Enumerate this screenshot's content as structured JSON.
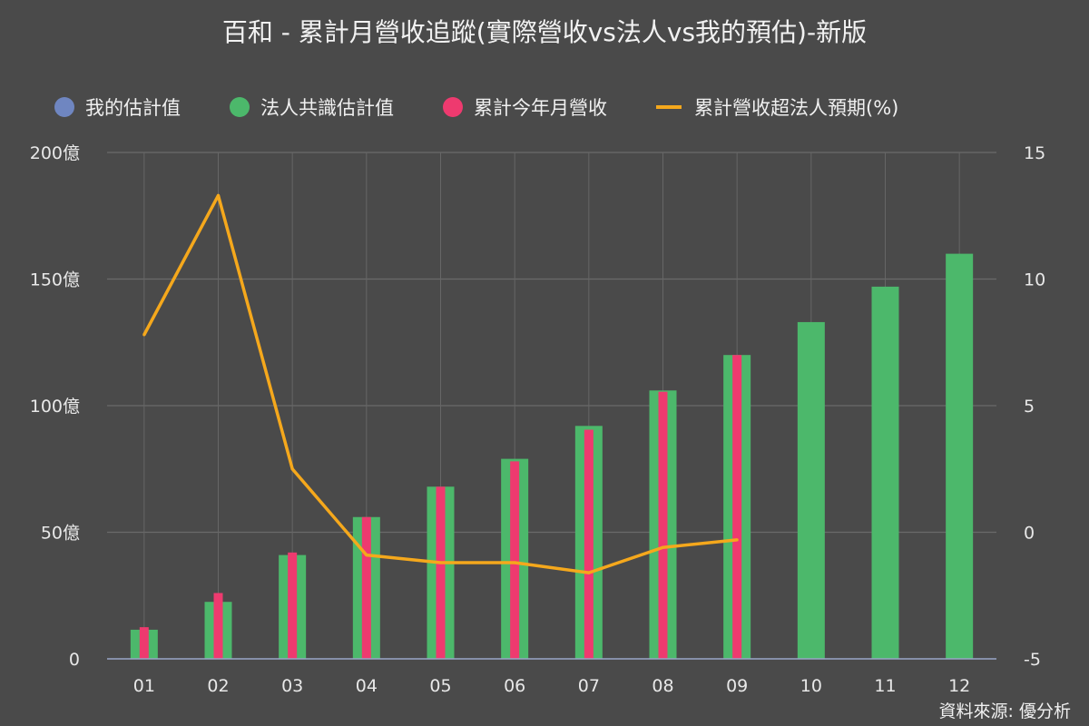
{
  "title": "百和 - 累計月營收追蹤(實際營收vs法人vs我的預估)-新版",
  "source": "資料來源: 優分析",
  "legend": [
    {
      "label": "我的估計值",
      "color": "#6f86c1",
      "kind": "dot",
      "icon": "circle-icon"
    },
    {
      "label": "法人共識估計值",
      "color": "#4cb86b",
      "kind": "dot",
      "icon": "circle-icon"
    },
    {
      "label": "累計今年月營收",
      "color": "#ee3a6f",
      "kind": "dot",
      "icon": "circle-icon"
    },
    {
      "label": "累計營收超法人預期(%)",
      "color": "#f5a81c",
      "kind": "line",
      "icon": "line-icon"
    }
  ],
  "chart_data": {
    "type": "bar",
    "categories": [
      "01",
      "02",
      "03",
      "04",
      "05",
      "06",
      "07",
      "08",
      "09",
      "10",
      "11",
      "12"
    ],
    "series": [
      {
        "name": "法人共識估計值",
        "type": "bar",
        "axis": "left",
        "color": "#4cb86b",
        "values": [
          11.5,
          22.5,
          41,
          56,
          68,
          79,
          92,
          106,
          120,
          133,
          147,
          160
        ]
      },
      {
        "name": "累計今年月營收",
        "type": "bar",
        "axis": "left",
        "color": "#ee3a6f",
        "values": [
          12.5,
          26,
          42,
          56,
          68,
          78,
          90.5,
          105.5,
          120,
          null,
          null,
          null
        ]
      },
      {
        "name": "累計營收超法人預期(%)",
        "type": "line",
        "axis": "right",
        "color": "#f5a81c",
        "values": [
          7.8,
          13.3,
          2.5,
          -0.9,
          -1.2,
          -1.2,
          -1.6,
          -0.6,
          -0.3,
          null,
          null,
          null
        ]
      }
    ],
    "left_axis": {
      "ylim": [
        0,
        200
      ],
      "ticks": [
        "0",
        "50億",
        "100億",
        "150億",
        "200億"
      ],
      "tick_values": [
        0,
        50,
        100,
        150,
        200
      ]
    },
    "right_axis": {
      "ylim": [
        -5,
        15
      ],
      "ticks": [
        "-5",
        "0",
        "5",
        "10",
        "15"
      ],
      "tick_values": [
        -5,
        0,
        5,
        10,
        15
      ]
    },
    "grid": true,
    "legend_position": "top"
  }
}
